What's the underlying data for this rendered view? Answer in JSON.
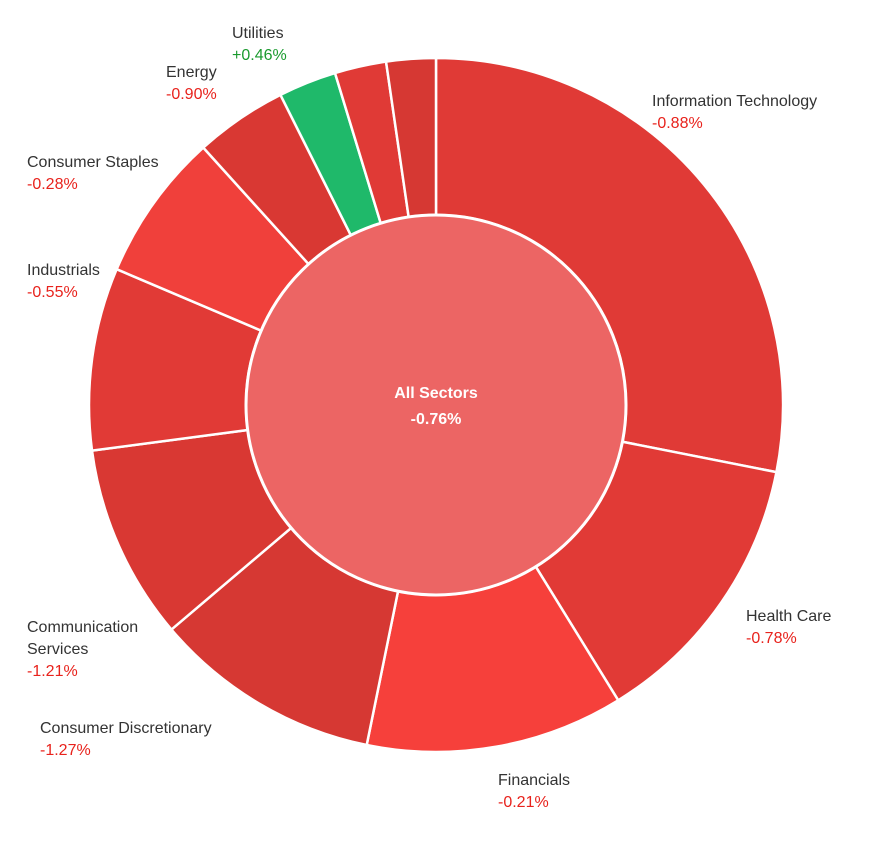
{
  "chart_data": {
    "type": "pie",
    "center": {
      "title": "All Sectors",
      "value": "-0.76%",
      "color": "#EC6564"
    },
    "slices": [
      {
        "name": "Information Technology",
        "change": "-0.88%",
        "weight": 28.1,
        "color": "#E03A36",
        "labeled": true
      },
      {
        "name": "Health Care",
        "change": "-0.78%",
        "weight": 13.1,
        "color": "#E13A36",
        "labeled": true
      },
      {
        "name": "Financials",
        "change": "-0.21%",
        "weight": 12.0,
        "color": "#F6403B",
        "labeled": true
      },
      {
        "name": "Consumer Discretionary",
        "change": "-1.27%",
        "weight": 10.6,
        "color": "#D63833",
        "labeled": true
      },
      {
        "name": "Communication Services",
        "change": "-1.21%",
        "weight": 9.1,
        "color": "#D93833",
        "labeled": true
      },
      {
        "name": "",
        "change": "",
        "weight": 8.5,
        "color": "#E13A36",
        "labeled": false
      },
      {
        "name": "Industrials",
        "change": "-0.55%",
        "weight": 6.9,
        "color": "#F0403B",
        "labeled": true
      },
      {
        "name": "Consumer Staples",
        "change": "-0.28%",
        "weight": 4.3,
        "color": "#D93833",
        "labeled": true
      },
      {
        "name": "Energy",
        "change": "-0.90%",
        "weight": 2.7,
        "color": "#1FB96A",
        "labeled": true
      },
      {
        "name": "Utilities",
        "change": "+0.46%",
        "weight": 2.4,
        "color": "#E03A36",
        "labeled": true
      },
      {
        "name": "",
        "change": "",
        "weight": 2.3,
        "color": "#D63833",
        "labeled": false
      }
    ],
    "colors": {
      "negative_text": "#E8221C",
      "positive_text": "#1A9A2E",
      "label_text": "#333333",
      "separator": "#ffffff"
    }
  }
}
